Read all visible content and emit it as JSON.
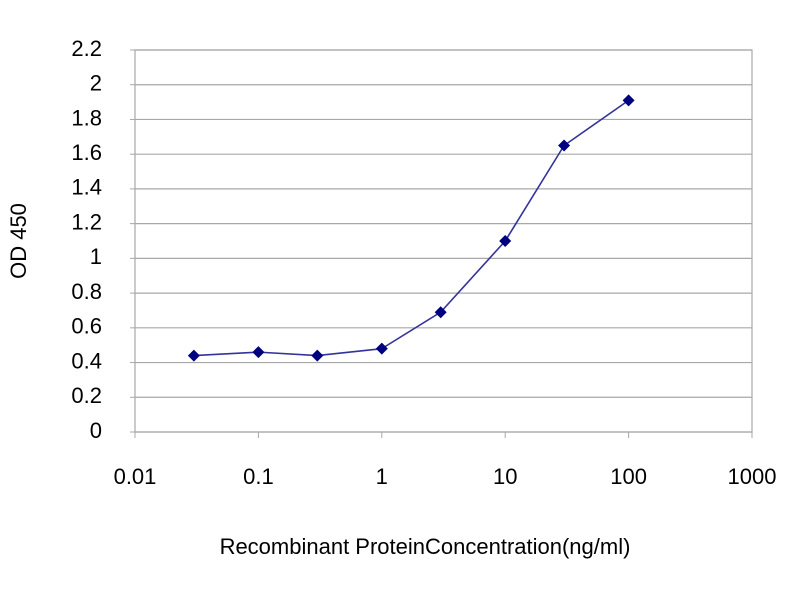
{
  "chart_data": {
    "type": "line",
    "x_label": "Recombinant ProteinConcentration(ng/ml)",
    "y_label": "OD 450",
    "x": [
      0.03,
      0.1,
      0.3,
      1,
      3,
      10,
      30,
      100
    ],
    "values": [
      0.44,
      0.46,
      0.44,
      0.48,
      0.69,
      1.1,
      1.65,
      1.91
    ],
    "color": "#333399",
    "marker_color": "#000080",
    "xscale": "log",
    "xlim": [
      0.01,
      1000
    ],
    "xticks": [
      0.01,
      0.1,
      1,
      10,
      100,
      1000
    ],
    "ylim": [
      0,
      2.2
    ],
    "yticks": [
      0,
      0.2,
      0.4,
      0.6,
      0.8,
      1,
      1.2,
      1.4,
      1.6,
      1.8,
      2,
      2.2
    ],
    "grid": true
  }
}
